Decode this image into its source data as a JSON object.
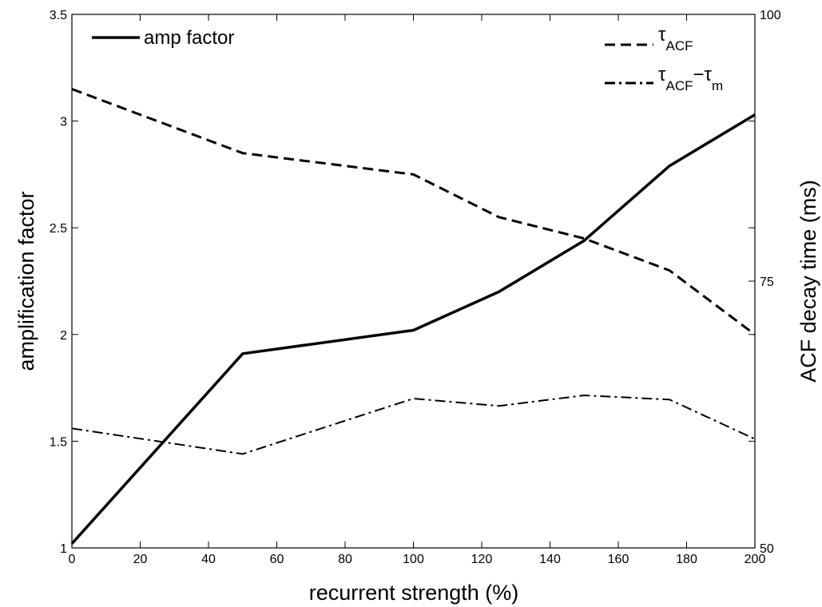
{
  "chart_data": {
    "type": "line",
    "xlabel": "recurrent strength (%)",
    "ylabel_left": "amplification factor",
    "ylabel_right": "ACF decay time (ms)",
    "xlim": [
      0,
      200
    ],
    "ylim_left": [
      1,
      3.5
    ],
    "ylim_right": [
      50,
      100
    ],
    "x_ticks": [
      "0",
      "20",
      "40",
      "60",
      "80",
      "100",
      "120",
      "140",
      "160",
      "180",
      "200"
    ],
    "y_left_ticks": [
      "1",
      "1.5",
      "2",
      "2.5",
      "3",
      "3.5"
    ],
    "y_right_ticks": [
      "50",
      "75",
      "100"
    ],
    "grid": false,
    "legend_left": "top-left",
    "legend_right": "top-right",
    "series": [
      {
        "name": "amp factor",
        "axis": "left",
        "style": "solid",
        "x": [
          0,
          50,
          100,
          125,
          150,
          175,
          200
        ],
        "values": [
          1.02,
          1.91,
          2.02,
          2.2,
          2.44,
          2.79,
          3.03
        ]
      },
      {
        "name": "τACF",
        "axis": "right",
        "style": "dashed",
        "x": [
          0,
          50,
          100,
          125,
          150,
          175,
          200
        ],
        "values": [
          93.0,
          87.0,
          85.0,
          81.0,
          79.0,
          76.0,
          70.0
        ]
      },
      {
        "name": "τACF−τm",
        "axis": "right",
        "style": "dashdot",
        "x": [
          0,
          50,
          100,
          125,
          150,
          175,
          200
        ],
        "values": [
          61.2,
          58.8,
          64.0,
          63.3,
          64.3,
          63.9,
          60.2
        ]
      }
    ],
    "legend_labels": {
      "amp": "amp factor",
      "tau_main": "τ",
      "tau_sub": "ACF",
      "diff_main": "τ",
      "diff_sub": "ACF",
      "diff_op": "−",
      "diff_main2": "τ",
      "diff_sub2": "m"
    }
  }
}
